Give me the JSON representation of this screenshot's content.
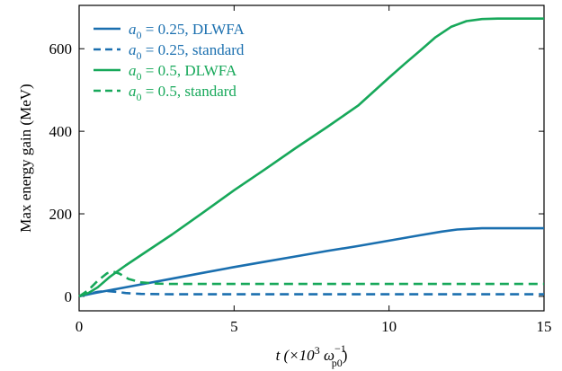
{
  "chart_data": {
    "type": "line",
    "xlabel": {
      "main": "t (×10",
      "sup1": "3",
      "omega": " ω",
      "sup2": "−1",
      "sub": "p0",
      "close": ")"
    },
    "ylabel": "Max energy gain (MeV)",
    "xlim": [
      0,
      15
    ],
    "ylim": [
      -35,
      705
    ],
    "xticks": [
      0,
      5,
      10,
      15
    ],
    "xtick_labels": [
      "0",
      "5",
      "10",
      "15"
    ],
    "yticks": [
      0,
      200,
      400,
      600
    ],
    "ytick_labels": [
      "0",
      "200",
      "400",
      "600"
    ],
    "grid": false,
    "legend_position": "top-left",
    "series": [
      {
        "name": "a0 = 0.25, DLWFA",
        "legend": {
          "a": "a",
          "sub": "0",
          "rest": " = 0.25, DLWFA"
        },
        "color": "#1a6faf",
        "style": "solid",
        "x": [
          0,
          0.5,
          1,
          2,
          3,
          4,
          5,
          6,
          7,
          8,
          9,
          10,
          11,
          11.7,
          12.2,
          12.7,
          13,
          14,
          15
        ],
        "y": [
          0,
          8,
          15,
          29,
          43,
          57,
          71,
          84,
          97,
          110,
          122,
          135,
          148,
          157,
          162,
          164,
          165,
          165,
          165
        ]
      },
      {
        "name": "a0 = 0.25, standard",
        "legend": {
          "a": "a",
          "sub": "0",
          "rest": " = 0.25, standard"
        },
        "color": "#1a6faf",
        "style": "dashed",
        "x": [
          0,
          0.3,
          0.6,
          0.9,
          1.2,
          1.5,
          2,
          3,
          5,
          10,
          15
        ],
        "y": [
          0,
          6,
          11,
          13,
          11,
          8,
          6,
          5,
          5,
          5,
          5
        ]
      },
      {
        "name": "a0 = 0.5, DLWFA",
        "legend": {
          "a": "a",
          "sub": "0",
          "rest": " = 0.5, DLWFA"
        },
        "color": "#17a85a",
        "style": "solid",
        "x": [
          0,
          0.3,
          0.6,
          1,
          1.5,
          2,
          3,
          4,
          5,
          6,
          7,
          8,
          9,
          10,
          10.5,
          11,
          11.5,
          12,
          12.5,
          13,
          13.5,
          14,
          14.5,
          15
        ],
        "y": [
          0,
          8,
          22,
          48,
          75,
          100,
          150,
          203,
          257,
          308,
          360,
          410,
          462,
          530,
          563,
          595,
          628,
          653,
          667,
          672,
          673,
          673,
          673,
          673
        ]
      },
      {
        "name": "a0 = 0.5, standard",
        "legend": {
          "a": "a",
          "sub": "0",
          "rest": " = 0.5, standard"
        },
        "color": "#17a85a",
        "style": "dashed",
        "x": [
          0,
          0.3,
          0.6,
          0.9,
          1.1,
          1.3,
          1.6,
          2,
          2.5,
          3,
          5,
          10,
          15
        ],
        "y": [
          0,
          15,
          38,
          56,
          60,
          55,
          42,
          34,
          31,
          30,
          30,
          30,
          30
        ]
      }
    ]
  }
}
